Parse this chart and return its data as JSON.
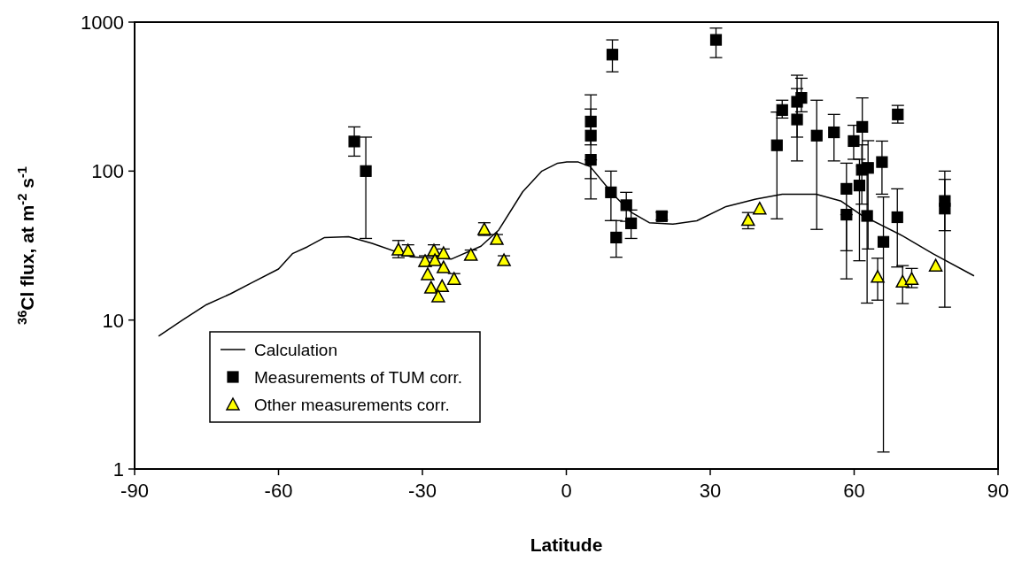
{
  "chart_data": {
    "type": "scatter",
    "xlabel": "Latitude",
    "ylabel": "$^{36}$Cl flux, at m$^{-2}$ s$^{-1}$",
    "log": "y",
    "xlim": [
      -90,
      90
    ],
    "xticks": [
      -90,
      -60,
      -30,
      0,
      30,
      60,
      90
    ],
    "ylim": [
      1,
      1000
    ],
    "yticks": [
      1,
      10,
      100,
      1000
    ],
    "grid": false,
    "legend": "bottom left",
    "series": [
      {
        "name": "Calculation",
        "type": "line",
        "color": "#000000",
        "marker": "none",
        "line_style": "solid",
        "x": [
          -85,
          -80,
          -75,
          -70,
          -65.7,
          -60,
          -57.1,
          -54,
          -50.4,
          -45.4,
          -40.5,
          -32.5,
          -23.9,
          -17.8,
          -14.1,
          -9.1,
          -5.1,
          -1.8,
          0.1,
          2.5,
          5,
          9.9,
          13.6,
          17.3,
          22.2,
          27.2,
          33.3,
          39.5,
          45,
          52.1,
          57.3,
          61.6,
          70.2,
          76.4,
          85
        ],
        "values": [
          7.8,
          10,
          12.7,
          15,
          17.7,
          22,
          27.9,
          31,
          35.8,
          36.3,
          32.7,
          26.6,
          25.7,
          31.3,
          40.2,
          72.6,
          100,
          113,
          115,
          115,
          107,
          69,
          52.7,
          45,
          44,
          46.4,
          57.8,
          64.9,
          70,
          70,
          62.8,
          50.5,
          36.6,
          27.9,
          19.8
        ]
      },
      {
        "name": "Measurements of TUM corr.",
        "color": "#000000",
        "marker": "square",
        "x": [
          -44.2,
          -41.8,
          5.1,
          5.1,
          5.1,
          9.6,
          9.3,
          10.4,
          12.5,
          13.5,
          19.9,
          31.2,
          43.9,
          45,
          48.1,
          48.1,
          49,
          52.2,
          55.8,
          58.4,
          58.4,
          59.9,
          61.7,
          61.1,
          61.6,
          62.9,
          62.7,
          65.8,
          66.1,
          69,
          69.1,
          78.9,
          78.9
        ],
        "values": [
          158,
          100,
          215,
          173,
          119,
          605,
          72,
          35.8,
          59,
          44.6,
          49.8,
          760,
          149,
          257,
          222,
          292,
          310,
          173,
          182,
          76,
          51,
          159,
          198,
          80,
          102,
          105,
          50,
          115,
          33.5,
          49,
          240,
          63,
          56
        ],
        "errors": [
          [
            126,
            198
          ],
          [
            35.3,
            169
          ],
          [
            150,
            325
          ],
          [
            89,
            261
          ],
          [
            65,
            119
          ],
          [
            464,
            760
          ],
          [
            46.5,
            100
          ],
          [
            26.4,
            46.5
          ],
          [
            46,
            72
          ],
          [
            35.3,
            54.8
          ],
          [
            47,
            53
          ],
          [
            578,
            912
          ],
          [
            47.8,
            249
          ],
          [
            227,
            299
          ],
          [
            169,
            358
          ],
          [
            117,
            440
          ],
          [
            250,
            420
          ],
          [
            40.6,
            299
          ],
          [
            117,
            240
          ],
          [
            29.2,
            113
          ],
          [
            18.9,
            51
          ],
          [
            120,
            203
          ],
          [
            108,
            310
          ],
          [
            25,
            120
          ],
          [
            60,
            150
          ],
          [
            30,
            160
          ],
          [
            13,
            100
          ],
          [
            70,
            159
          ],
          [
            1.3,
            67
          ],
          [
            22.7,
            76
          ],
          [
            210,
            276
          ],
          [
            39.8,
            100
          ],
          [
            12.2,
            88
          ]
        ]
      },
      {
        "name": "Other measurements corr.",
        "color": "#ffff00",
        "marker": "triangle",
        "x": [
          -35,
          -33,
          -29.45,
          -27.6,
          -25.6,
          -27.4,
          -25.6,
          -28.9,
          -28.2,
          -25.9,
          -26.7,
          -23.4,
          -19.9,
          -17.1,
          -14.5,
          -13,
          37.9,
          40.3,
          64.9,
          70.1,
          72,
          77
        ],
        "values": [
          29.7,
          29.3,
          24.9,
          29.3,
          28.1,
          25.2,
          22.6,
          20.3,
          16.5,
          16.9,
          14.4,
          18.9,
          27.4,
          40.7,
          35,
          25.2,
          47,
          56,
          19.5,
          18.1,
          18.9,
          23.2
        ],
        "errors": [
          [
            26.2,
            34.2
          ],
          [
            27,
            32
          ],
          [
            23,
            27
          ],
          [
            27,
            32
          ],
          [
            26,
            30
          ],
          [
            23.5,
            27
          ],
          null,
          null,
          null,
          null,
          null,
          [
            17.5,
            20.5
          ],
          [
            25.5,
            29.5
          ],
          [
            37,
            45
          ],
          [
            33,
            37.5
          ],
          [
            23.5,
            27
          ],
          [
            41,
            52.7
          ],
          null,
          [
            13.6,
            26
          ],
          [
            12.9,
            23.2
          ],
          [
            16.5,
            22.2
          ],
          null
        ]
      }
    ]
  }
}
